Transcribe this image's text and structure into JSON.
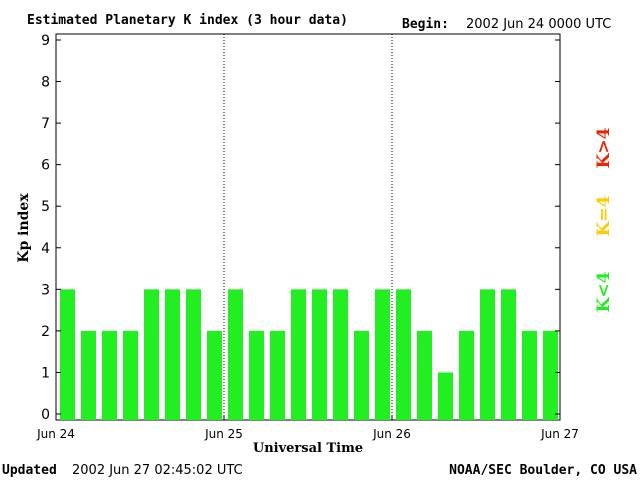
{
  "header": {
    "title": "Estimated Planetary K index (3 hour data)",
    "begin_label": "Begin:",
    "begin_value": "2002 Jun 24 0000 UTC"
  },
  "footer": {
    "updated_label": "Updated",
    "updated_value": "2002 Jun 27 02:45:02 UTC",
    "source": "NOAA/SEC Boulder, CO USA"
  },
  "legend": {
    "items": [
      {
        "label": "K<4",
        "color": "#22ee22"
      },
      {
        "label": "K=4",
        "color": "#ffcc00"
      },
      {
        "label": "K>4",
        "color": "#ee2200"
      }
    ]
  },
  "chart_data": {
    "type": "bar",
    "title": "Estimated Planetary K index (3 hour data)",
    "xlabel": "Universal Time",
    "ylabel": "Kp index",
    "ylim": [
      0,
      9
    ],
    "yticks": [
      0,
      1,
      2,
      3,
      4,
      5,
      6,
      7,
      8,
      9
    ],
    "x_ticks": [
      "Jun 24",
      "Jun 25",
      "Jun 26",
      "Jun 27"
    ],
    "bar_color": "#22ee22",
    "grid": false,
    "day_separators": true,
    "values": [
      3,
      2,
      2,
      2,
      3,
      3,
      3,
      2,
      3,
      2,
      2,
      3,
      3,
      3,
      2,
      3,
      3,
      2,
      1,
      2,
      3,
      3,
      2,
      2
    ]
  }
}
